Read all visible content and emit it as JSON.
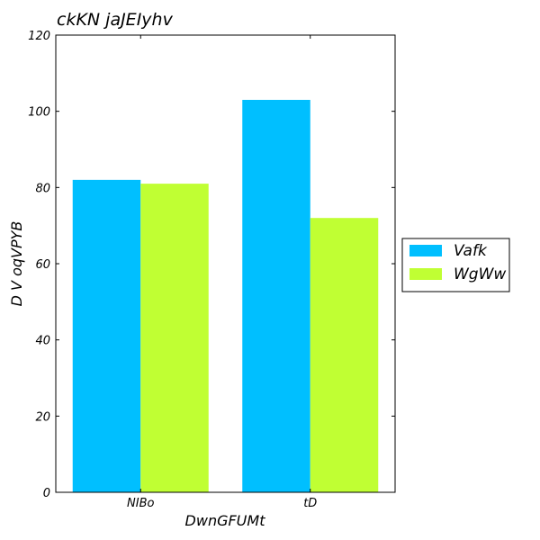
{
  "chart_data": {
    "type": "bar",
    "title": "ckKN jaJEIyhv",
    "xlabel": "DwnGFUMt",
    "ylabel": "D V oqVPYB",
    "categories": [
      "NIBo",
      "tD"
    ],
    "series": [
      {
        "name": "Vafk",
        "values": [
          82,
          103
        ],
        "color": "#00bfff"
      },
      {
        "name": "WgWw",
        "values": [
          81,
          72
        ],
        "color": "#c0ff33"
      }
    ],
    "ylim": [
      0,
      120
    ],
    "yticks": [
      0,
      20,
      40,
      60,
      80,
      100,
      120
    ],
    "grid": false,
    "legend": "right"
  }
}
